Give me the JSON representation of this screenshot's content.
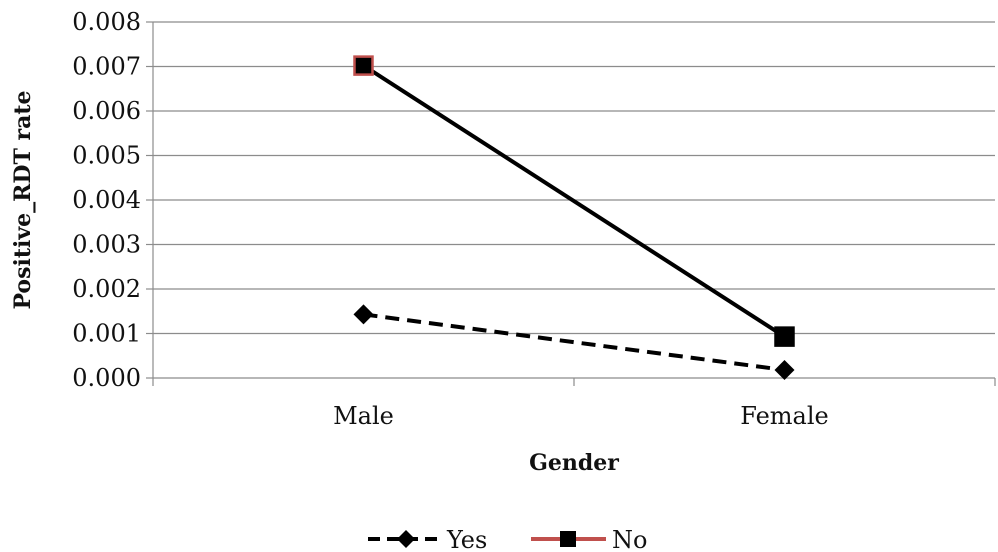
{
  "chart_data": {
    "type": "line",
    "categories": [
      "Male",
      "Female"
    ],
    "xlabel": "Gender",
    "ylabel": "Positive_RDT rate",
    "ylim": [
      0,
      0.008
    ],
    "yticks": [
      "0.000",
      "0.001",
      "0.002",
      "0.003",
      "0.004",
      "0.005",
      "0.006",
      "0.007",
      "0.008"
    ],
    "grid": true,
    "legend_position": "bottom",
    "series": [
      {
        "name": "Yes",
        "values": [
          0.00143,
          0.00018
        ],
        "line_style": "dashed",
        "marker": "diamond",
        "color": "#000000"
      },
      {
        "name": "No",
        "values": [
          0.00702,
          0.00093
        ],
        "line_style": "solid",
        "marker": "square",
        "color": "#000000",
        "marker_edge_color": "#c0504d"
      }
    ]
  }
}
